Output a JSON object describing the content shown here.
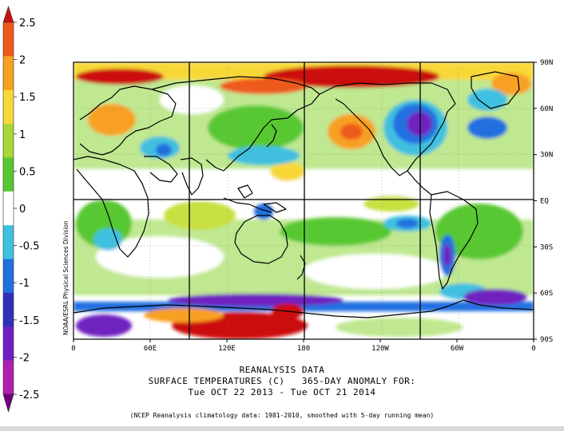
{
  "colorbar": {
    "labels": [
      "2.5",
      "2",
      "1.5",
      "1",
      "0.5",
      "0",
      "-0.5",
      "-1",
      "-1.5",
      "-2",
      "-2.5"
    ],
    "colors": [
      "#cc1010",
      "#ee5a1a",
      "#f8a020",
      "#f8d838",
      "#a8d838",
      "#58c830",
      "#ffffff",
      "#40c0e0",
      "#2070e0",
      "#3030b8",
      "#7020c0",
      "#b020b0",
      "#700080"
    ]
  },
  "map": {
    "credit": "NOAA/ESRL Physical Sciences Division",
    "lat_labels": [
      "90N",
      "60N",
      "30N",
      "EQ",
      "30S",
      "60S",
      "90S"
    ],
    "lon_labels": [
      "0",
      "60E",
      "120E",
      "180",
      "120W",
      "60W",
      "0"
    ],
    "colors": {
      "ocean_white": "#ffffff",
      "pale_green": "#bfe890",
      "green": "#58c830",
      "yellow_green": "#c8e040",
      "yellow": "#f8d838",
      "orange": "#f8a020",
      "orange_red": "#ee5a1a",
      "red": "#cc1010",
      "cyan": "#40c0e0",
      "blue": "#2070e0",
      "dark_blue": "#3030b8",
      "purple": "#7020c0",
      "coast": "#000000"
    }
  },
  "caption": {
    "line1": "REANALYSIS DATA",
    "line2": "SURFACE TEMPERATURES (C)   365-DAY ANOMALY FOR:",
    "line3": "Tue OCT 22 2013 - Tue OCT 21 2014",
    "note": "(NCEP Reanalysis climatology data: 1981-2010, smoothed with 5-day running mean)"
  }
}
